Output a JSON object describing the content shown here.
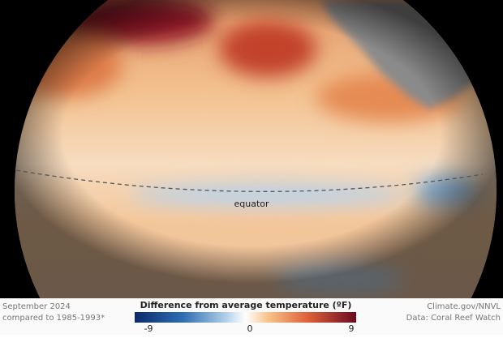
{
  "map": {
    "label": "equator"
  },
  "footer": {
    "date": "September 2024",
    "baseline": "compared to 1985-1993*",
    "credit": "Climate.gov/NNVL",
    "source": "Data: Coral Reef Watch"
  },
  "legend": {
    "title": "Difference from average temperature (ºF)",
    "ticks": [
      -9,
      0,
      9
    ]
  }
}
